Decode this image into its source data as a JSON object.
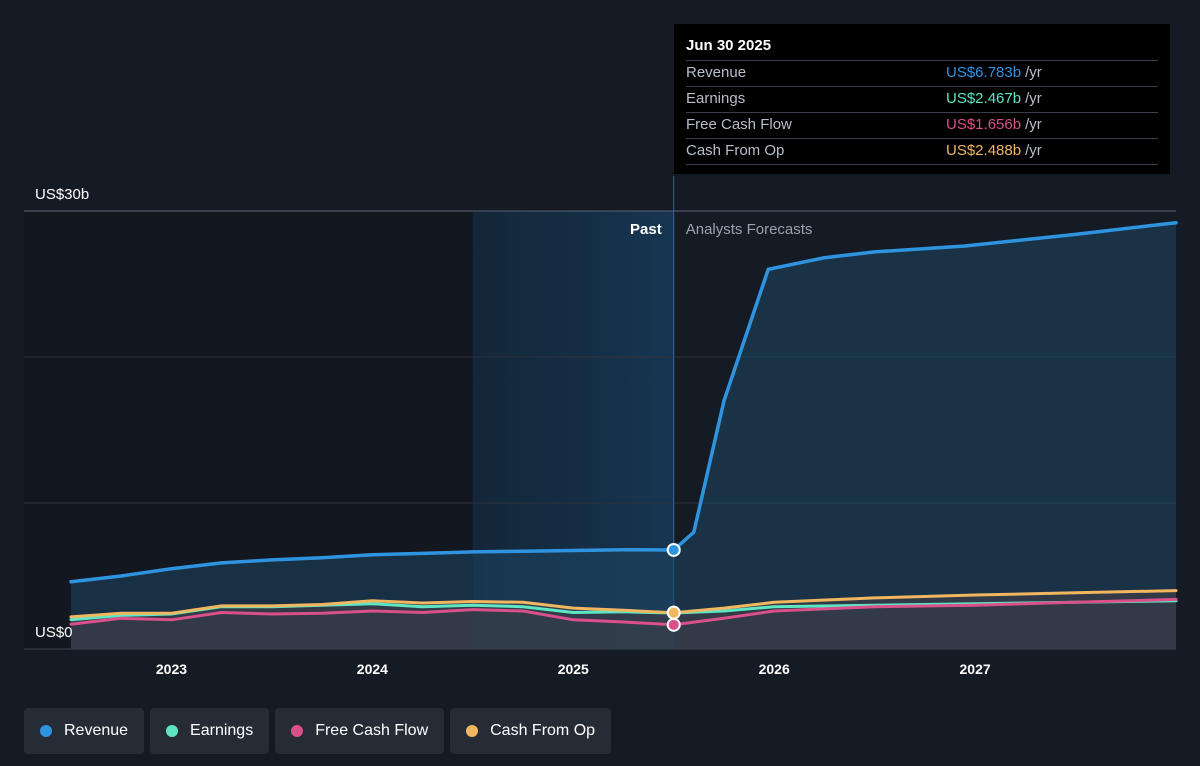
{
  "tooltip": {
    "date": "Jun 30 2025",
    "unit": "/yr",
    "rows": [
      {
        "label": "Revenue",
        "value": "US$6.783b",
        "color": "#2f94e0"
      },
      {
        "label": "Earnings",
        "value": "US$2.467b",
        "color": "#5ee6c4"
      },
      {
        "label": "Free Cash Flow",
        "value": "US$1.656b",
        "color": "#d9508a"
      },
      {
        "label": "Cash From Op",
        "value": "US$2.488b",
        "color": "#f0b660"
      }
    ]
  },
  "legend": [
    {
      "label": "Revenue",
      "color": "#2f94e0"
    },
    {
      "label": "Earnings",
      "color": "#5ee6c4"
    },
    {
      "label": "Free Cash Flow",
      "color": "#d9508a"
    },
    {
      "label": "Cash From Op",
      "color": "#f0b660"
    }
  ],
  "chart_data": {
    "type": "line",
    "y_unit_label_top": "US$30b",
    "y_unit_label_bottom": "US$0",
    "ylim": [
      0,
      30
    ],
    "xlim": [
      2022.5,
      2028.0
    ],
    "x_ticks": [
      2023,
      2024,
      2025,
      2026,
      2027
    ],
    "x_tick_labels": [
      "2023",
      "2024",
      "2025",
      "2026",
      "2027"
    ],
    "gridlines_y": [
      10,
      20,
      30
    ],
    "past_label": "Past",
    "forecast_label": "Analysts Forecasts",
    "past_end_x": 2025.5,
    "highlight_start_x": 2024.5,
    "series": [
      {
        "name": "Revenue",
        "color": "#2f94e0",
        "x": [
          2022.5,
          2022.75,
          2023.0,
          2023.25,
          2023.5,
          2023.75,
          2024.0,
          2024.25,
          2024.5,
          2024.75,
          2025.0,
          2025.25,
          2025.5,
          2025.6,
          2025.75,
          2025.97,
          2026.25,
          2026.5,
          2026.95,
          2027.5,
          2028.0
        ],
        "y": [
          4.6,
          5.0,
          5.5,
          5.9,
          6.1,
          6.25,
          6.45,
          6.55,
          6.65,
          6.7,
          6.75,
          6.8,
          6.783,
          8.0,
          17.0,
          26.0,
          26.8,
          27.2,
          27.6,
          28.4,
          29.2
        ]
      },
      {
        "name": "Earnings",
        "color": "#5ee6c4",
        "x": [
          2022.5,
          2022.75,
          2023.0,
          2023.25,
          2023.5,
          2023.75,
          2024.0,
          2024.25,
          2024.5,
          2024.75,
          2025.0,
          2025.25,
          2025.5,
          2025.75,
          2026.0,
          2026.5,
          2027.0,
          2027.5,
          2028.0
        ],
        "y": [
          2.0,
          2.3,
          2.4,
          2.9,
          2.9,
          3.0,
          3.1,
          2.9,
          3.0,
          2.9,
          2.5,
          2.55,
          2.467,
          2.6,
          2.9,
          3.0,
          3.1,
          3.2,
          3.3
        ]
      },
      {
        "name": "Free Cash Flow",
        "color": "#d9508a",
        "x": [
          2022.5,
          2022.75,
          2023.0,
          2023.25,
          2023.5,
          2023.75,
          2024.0,
          2024.25,
          2024.5,
          2024.75,
          2025.0,
          2025.25,
          2025.5,
          2025.75,
          2026.0,
          2026.5,
          2027.0,
          2027.5,
          2028.0
        ],
        "y": [
          1.7,
          2.1,
          2.0,
          2.5,
          2.4,
          2.45,
          2.6,
          2.5,
          2.7,
          2.6,
          2.0,
          1.85,
          1.656,
          2.1,
          2.6,
          2.9,
          3.0,
          3.2,
          3.4
        ]
      },
      {
        "name": "Cash From Op",
        "color": "#f0b660",
        "x": [
          2022.5,
          2022.75,
          2023.0,
          2023.25,
          2023.5,
          2023.75,
          2024.0,
          2024.25,
          2024.5,
          2024.75,
          2025.0,
          2025.25,
          2025.5,
          2025.75,
          2026.0,
          2026.5,
          2027.0,
          2027.5,
          2028.0
        ],
        "y": [
          2.2,
          2.45,
          2.45,
          2.95,
          2.95,
          3.05,
          3.3,
          3.15,
          3.25,
          3.2,
          2.8,
          2.65,
          2.488,
          2.8,
          3.2,
          3.5,
          3.7,
          3.85,
          4.0
        ]
      }
    ]
  }
}
